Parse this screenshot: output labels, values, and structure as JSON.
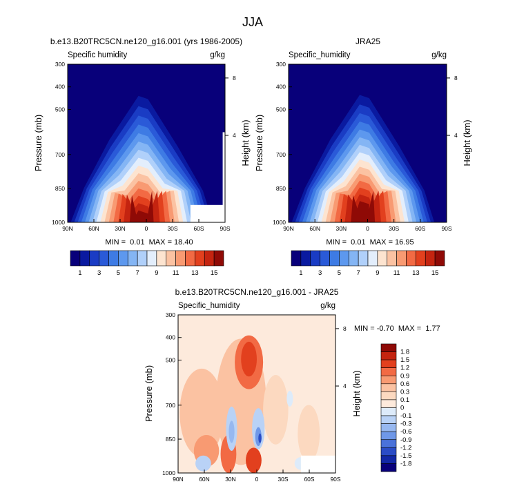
{
  "main_title": "JJA",
  "chart_data": [
    {
      "type": "heatmap",
      "panel_title": "b.e13.B20TRC5CN.ne120_g16.001 (yrs 1986-2005)",
      "left_label": "Specific humidity",
      "right_label": "g/kg",
      "ylabel": "Pressure (mb)",
      "ylabel_right": "Height (km)",
      "x_ticks": [
        "90N",
        "60N",
        "30N",
        "0",
        "30S",
        "60S",
        "90S"
      ],
      "y_ticks": [
        "300",
        "400",
        "500",
        "700",
        "850",
        "1000"
      ],
      "y_ticks_right": [
        "8",
        "4"
      ],
      "stats": "MIN =  0.01  MAX = 18.40",
      "colorbar_labels": [
        "1",
        "3",
        "5",
        "7",
        "9",
        "11",
        "13",
        "15"
      ],
      "colors": [
        "#08007a",
        "#0a1aa0",
        "#1a3cc4",
        "#2a5ad8",
        "#3e7be4",
        "#5d98ee",
        "#84b5f4",
        "#b0d0fa",
        "#e3eefc",
        "#fde4d0",
        "#fbc2a2",
        "#f89a72",
        "#f26a44",
        "#e2401e",
        "#c42410",
        "#8f0a06"
      ]
    },
    {
      "type": "heatmap",
      "panel_title": "JRA25",
      "left_label": "Specific_humidity",
      "right_label": "g/kg",
      "ylabel": "Pressure (mb)",
      "ylabel_right": "Height (km)",
      "x_ticks": [
        "90N",
        "60N",
        "30N",
        "0",
        "30S",
        "60S",
        "90S"
      ],
      "y_ticks": [
        "300",
        "400",
        "500",
        "700",
        "850",
        "1000"
      ],
      "y_ticks_right": [
        "8",
        "4"
      ],
      "stats": "MIN =  0.01  MAX = 16.95",
      "colorbar_labels": [
        "1",
        "3",
        "5",
        "7",
        "9",
        "11",
        "13",
        "15"
      ]
    },
    {
      "type": "heatmap",
      "panel_title": "b.e13.B20TRC5CN.ne120_g16.001 - JRA25",
      "left_label": "Specific_humidity",
      "right_label": "g/kg",
      "ylabel": "Pressure (mb)",
      "ylabel_right": "Height (km)",
      "x_ticks": [
        "90N",
        "60N",
        "30N",
        "0",
        "30S",
        "60S",
        "90S"
      ],
      "y_ticks": [
        "300",
        "400",
        "500",
        "700",
        "850",
        "1000"
      ],
      "y_ticks_right": [
        "8",
        "4"
      ],
      "stats": "MIN = -0.70  MAX =  1.77",
      "colorbar_labels": [
        "1.8",
        "1.5",
        "1.2",
        "0.9",
        "0.6",
        "0.3",
        "0.1",
        "0",
        "-0.1",
        "-0.3",
        "-0.6",
        "-0.9",
        "-1.2",
        "-1.5",
        "-1.8"
      ],
      "colors": [
        "#8f0a06",
        "#c42410",
        "#e2401e",
        "#f26a44",
        "#f89a72",
        "#fbc2a2",
        "#fcd9c0",
        "#fdeadc",
        "#ddebfa",
        "#b9d2f6",
        "#97b8f0",
        "#6f98e8",
        "#4a72da",
        "#2a4cc6",
        "#1228a6",
        "#08007a"
      ]
    }
  ]
}
